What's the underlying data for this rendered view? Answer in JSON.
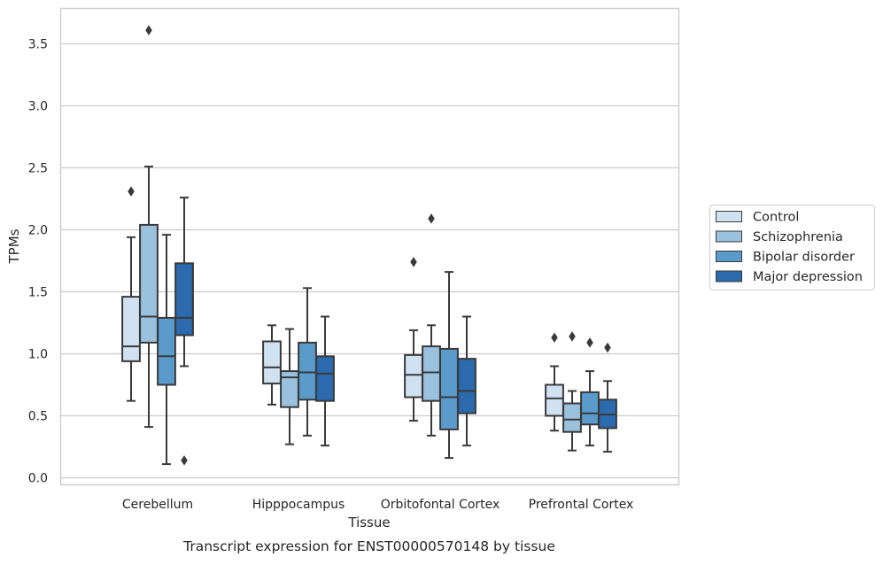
{
  "chart_data": {
    "type": "box",
    "title": "",
    "caption": "Transcript expression for ENST00000570148 by tissue",
    "xlabel": "Tissue",
    "ylabel": "TPMs",
    "ylim": [
      -0.05,
      3.75
    ],
    "yticks": [
      "0.0",
      "0.5",
      "1.0",
      "1.5",
      "2.0",
      "2.5",
      "3.0",
      "3.5"
    ],
    "grid": "horizontal",
    "legend_position": "right",
    "categories": [
      "Cerebellum",
      "Hipppocampus",
      "Orbitofontal Cortex",
      "Prefrontal Cortex"
    ],
    "series": [
      {
        "name": "Control",
        "color": "#d0e1f2",
        "boxes": [
          {
            "whislo": 0.62,
            "q1": 0.94,
            "med": 1.06,
            "q3": 1.46,
            "whishi": 1.94,
            "fliers": [
              2.31
            ]
          },
          {
            "whislo": 0.59,
            "q1": 0.76,
            "med": 0.89,
            "q3": 1.1,
            "whishi": 1.23,
            "fliers": []
          },
          {
            "whislo": 0.46,
            "q1": 0.65,
            "med": 0.83,
            "q3": 0.99,
            "whishi": 1.19,
            "fliers": [
              1.74
            ]
          },
          {
            "whislo": 0.38,
            "q1": 0.5,
            "med": 0.64,
            "q3": 0.75,
            "whishi": 0.9,
            "fliers": [
              1.13
            ]
          }
        ]
      },
      {
        "name": "Schizophrenia",
        "color": "#9ac1dd",
        "boxes": [
          {
            "whislo": 0.41,
            "q1": 1.09,
            "med": 1.3,
            "q3": 2.04,
            "whishi": 2.51,
            "fliers": [
              3.61
            ]
          },
          {
            "whislo": 0.27,
            "q1": 0.57,
            "med": 0.81,
            "q3": 0.86,
            "whishi": 1.2,
            "fliers": []
          },
          {
            "whislo": 0.34,
            "q1": 0.62,
            "med": 0.85,
            "q3": 1.06,
            "whishi": 1.23,
            "fliers": [
              2.09
            ]
          },
          {
            "whislo": 0.22,
            "q1": 0.37,
            "med": 0.47,
            "q3": 0.6,
            "whishi": 0.7,
            "fliers": [
              1.14
            ]
          }
        ]
      },
      {
        "name": "Bipolar disorder",
        "color": "#5a9bcb",
        "boxes": [
          {
            "whislo": 0.11,
            "q1": 0.75,
            "med": 0.98,
            "q3": 1.29,
            "whishi": 1.96,
            "fliers": []
          },
          {
            "whislo": 0.34,
            "q1": 0.63,
            "med": 0.85,
            "q3": 1.09,
            "whishi": 1.53,
            "fliers": []
          },
          {
            "whislo": 0.16,
            "q1": 0.39,
            "med": 0.65,
            "q3": 1.04,
            "whishi": 1.66,
            "fliers": []
          },
          {
            "whislo": 0.26,
            "q1": 0.43,
            "med": 0.52,
            "q3": 0.69,
            "whishi": 0.86,
            "fliers": [
              1.09
            ]
          }
        ]
      },
      {
        "name": "Major depression",
        "color": "#2a6aad",
        "boxes": [
          {
            "whislo": 0.9,
            "q1": 1.15,
            "med": 1.29,
            "q3": 1.73,
            "whishi": 2.26,
            "fliers": [
              0.14
            ]
          },
          {
            "whislo": 0.26,
            "q1": 0.62,
            "med": 0.84,
            "q3": 0.98,
            "whishi": 1.3,
            "fliers": []
          },
          {
            "whislo": 0.26,
            "q1": 0.52,
            "med": 0.7,
            "q3": 0.96,
            "whishi": 1.3,
            "fliers": []
          },
          {
            "whislo": 0.21,
            "q1": 0.4,
            "med": 0.51,
            "q3": 0.63,
            "whishi": 0.78,
            "fliers": [
              1.05
            ]
          }
        ]
      }
    ],
    "colors": {
      "grid": "#cccccc",
      "frame": "#cccccc",
      "edge": "#3a3a3a"
    }
  }
}
